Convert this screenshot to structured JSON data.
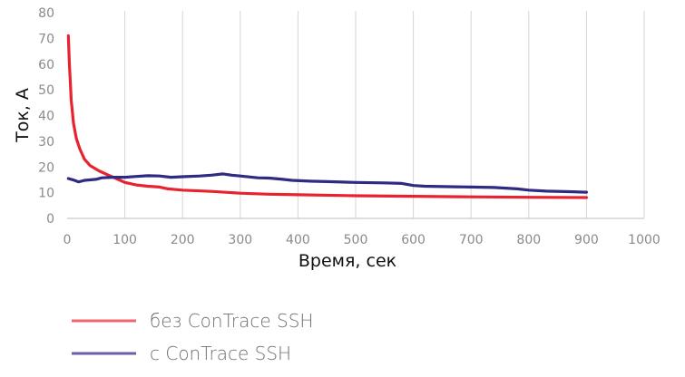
{
  "chart_data": {
    "type": "line",
    "xlabel": "Время, сек",
    "ylabel": "Ток, А",
    "xlim": [
      0,
      1000
    ],
    "ylim": [
      0,
      80
    ],
    "x_ticks": [
      "0",
      "100",
      "200",
      "300",
      "400",
      "500",
      "600",
      "700",
      "800",
      "900",
      "1000"
    ],
    "y_ticks": [
      "0",
      "10",
      "20",
      "30",
      "40",
      "50",
      "60",
      "70",
      "80"
    ],
    "grid": "vertical",
    "legend_position": "bottom-left",
    "series": [
      {
        "name": "без ConTrace SSH",
        "color": "#e8222f",
        "legend_color": "#f0646c",
        "points": [
          [
            2,
            71
          ],
          [
            4,
            60
          ],
          [
            7,
            46
          ],
          [
            11,
            37
          ],
          [
            16,
            31
          ],
          [
            22,
            27
          ],
          [
            30,
            23
          ],
          [
            40,
            20.5
          ],
          [
            55,
            18.5
          ],
          [
            70,
            17
          ],
          [
            85,
            15.5
          ],
          [
            100,
            14
          ],
          [
            120,
            13
          ],
          [
            140,
            12.5
          ],
          [
            160,
            12.2
          ],
          [
            175,
            11.5
          ],
          [
            200,
            11
          ],
          [
            250,
            10.5
          ],
          [
            300,
            9.8
          ],
          [
            350,
            9.4
          ],
          [
            400,
            9.2
          ],
          [
            500,
            8.8
          ],
          [
            600,
            8.6
          ],
          [
            700,
            8.4
          ],
          [
            800,
            8.2
          ],
          [
            900,
            8.1
          ]
        ]
      },
      {
        "name": "с ConTrace SSH",
        "color": "#2f2a82",
        "legend_color": "#6a60a8",
        "points": [
          [
            2,
            15.5
          ],
          [
            10,
            15
          ],
          [
            20,
            14.2
          ],
          [
            30,
            14.8
          ],
          [
            50,
            15.2
          ],
          [
            60,
            15.8
          ],
          [
            80,
            16
          ],
          [
            100,
            16
          ],
          [
            120,
            16.3
          ],
          [
            140,
            16.6
          ],
          [
            160,
            16.5
          ],
          [
            180,
            16.0
          ],
          [
            200,
            16.2
          ],
          [
            230,
            16.5
          ],
          [
            250,
            16.8
          ],
          [
            270,
            17.3
          ],
          [
            285,
            16.8
          ],
          [
            300,
            16.5
          ],
          [
            330,
            15.8
          ],
          [
            350,
            15.7
          ],
          [
            370,
            15.3
          ],
          [
            390,
            14.8
          ],
          [
            420,
            14.5
          ],
          [
            450,
            14.3
          ],
          [
            500,
            14.0
          ],
          [
            550,
            13.8
          ],
          [
            580,
            13.6
          ],
          [
            600,
            12.8
          ],
          [
            620,
            12.5
          ],
          [
            700,
            12.2
          ],
          [
            740,
            12.0
          ],
          [
            780,
            11.5
          ],
          [
            800,
            11.0
          ],
          [
            830,
            10.6
          ],
          [
            870,
            10.4
          ],
          [
            900,
            10.2
          ]
        ]
      }
    ]
  }
}
